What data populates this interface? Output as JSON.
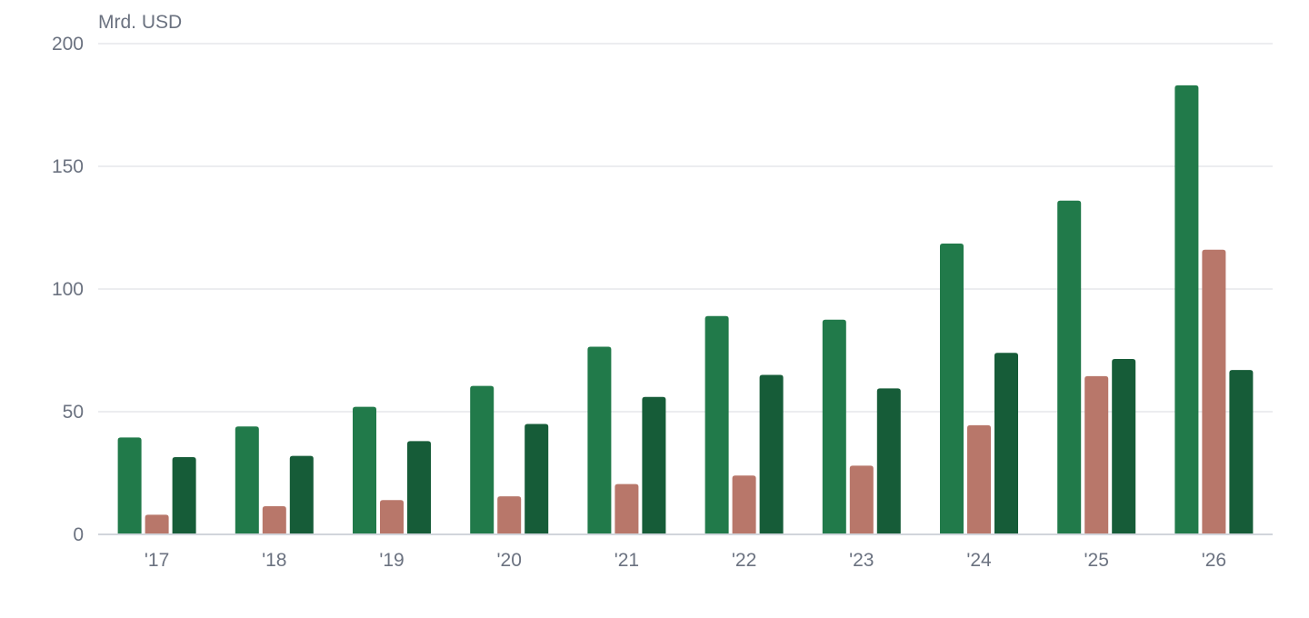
{
  "chart_data": {
    "type": "bar",
    "unit_label": "Mrd. USD",
    "categories": [
      "'17",
      "'18",
      "'19",
      "'20",
      "'21",
      "'22",
      "'23",
      "'24",
      "'25",
      "'26"
    ],
    "series": [
      {
        "color": "#217a4a",
        "values": [
          39.5,
          44,
          52,
          60.5,
          76.5,
          89,
          87.5,
          118.5,
          136,
          183
        ]
      },
      {
        "color": "#b8776a",
        "values": [
          8,
          11.5,
          14,
          15.5,
          20.5,
          24,
          28,
          44.5,
          64.5,
          116
        ]
      },
      {
        "color": "#165c38",
        "values": [
          31.5,
          32,
          38,
          45,
          56,
          65,
          59.5,
          74,
          71.5,
          67
        ]
      }
    ],
    "y_ticks": [
      "0",
      "50",
      "100",
      "150",
      "200"
    ],
    "ylim": [
      0,
      200
    ],
    "grid": true,
    "legend": "none"
  }
}
